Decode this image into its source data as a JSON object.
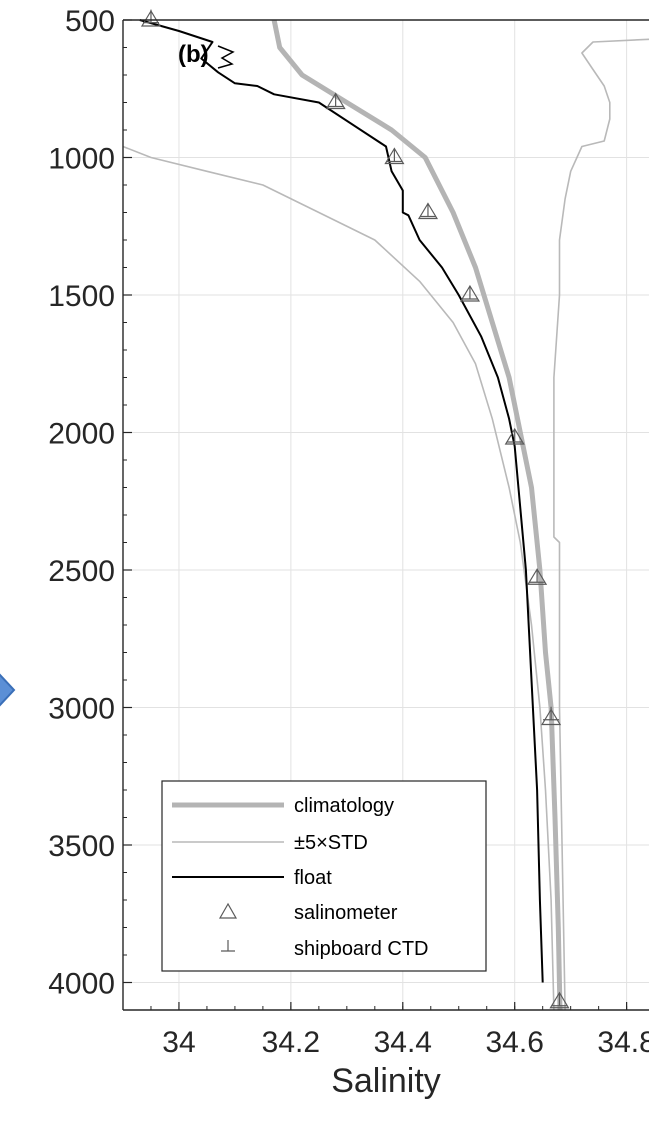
{
  "chart_data": {
    "type": "line",
    "panel_label": "(b)",
    "xlabel": "Salinity",
    "ylabel": "",
    "xlim": [
      33.9,
      34.84
    ],
    "ylim": [
      500,
      4100
    ],
    "y_reversed": true,
    "grid": true,
    "x_ticks": [
      34,
      34.2,
      34.4,
      34.6,
      34.8
    ],
    "x_tick_labels": [
      "34",
      "34.2",
      "34.4",
      "34.6",
      "34.8"
    ],
    "y_ticks": [
      500,
      1000,
      1500,
      2000,
      2500,
      3000,
      3500,
      4000
    ],
    "y_tick_labels": [
      "500",
      "1000",
      "1500",
      "2000",
      "2500",
      "3000",
      "3500",
      "4000"
    ],
    "legend": {
      "placement": "bottom-left",
      "entries": [
        {
          "key": "climatology",
          "label": "climatology"
        },
        {
          "key": "std",
          "label": "±5×STD"
        },
        {
          "key": "float",
          "label": "float"
        },
        {
          "key": "salinometer",
          "label": "salinometer"
        },
        {
          "key": "ctd",
          "label": "shipboard CTD"
        }
      ]
    },
    "colors": {
      "climatology": "#b4b4b4",
      "std": "#b9b9b9",
      "float": "#000000",
      "markers": "#5a5a5a",
      "grid": "#e2e2e2",
      "axis": "#262626"
    },
    "series": [
      {
        "key": "climatology",
        "name": "climatology",
        "x": [
          34.17,
          34.18,
          34.22,
          34.3,
          34.38,
          34.44,
          34.49,
          34.53,
          34.56,
          34.59,
          34.61,
          34.63,
          34.645,
          34.655,
          34.665,
          34.672,
          34.678,
          34.681
        ],
        "y": [
          500,
          600,
          700,
          800,
          900,
          1000,
          1200,
          1400,
          1600,
          1800,
          2000,
          2200,
          2500,
          2800,
          3000,
          3400,
          3800,
          4100
        ]
      },
      {
        "key": "std_lower",
        "name": "±5×STD",
        "x": [
          33.9,
          33.95,
          34.05,
          34.15,
          34.25,
          34.35,
          34.43,
          34.49,
          34.53,
          34.56,
          34.59,
          34.61,
          34.63,
          34.645,
          34.655,
          34.665,
          34.67
        ],
        "y": [
          960,
          1000,
          1050,
          1100,
          1200,
          1300,
          1450,
          1600,
          1750,
          1950,
          2200,
          2400,
          2700,
          3000,
          3300,
          3700,
          4100
        ]
      },
      {
        "key": "std_upper",
        "name": "±5×STD",
        "x": [
          34.84,
          34.74,
          34.72,
          34.74,
          34.76,
          34.77,
          34.77,
          34.76,
          34.72,
          34.7,
          34.69,
          34.68,
          34.68,
          34.67,
          34.67,
          34.67,
          34.67,
          34.68,
          34.68,
          34.69
        ],
        "y": [
          570,
          580,
          620,
          680,
          740,
          800,
          860,
          940,
          960,
          1050,
          1150,
          1300,
          1500,
          1800,
          2000,
          2200,
          2380,
          2400,
          3000,
          4100
        ]
      },
      {
        "key": "float",
        "name": "float",
        "x": [
          33.93,
          34.0,
          34.06,
          34.04,
          34.07,
          34.1,
          34.14,
          34.17,
          34.25,
          34.37,
          34.38,
          34.4,
          34.4,
          34.41,
          34.43,
          34.47,
          34.5,
          34.54,
          34.57,
          34.59,
          34.6,
          34.62,
          34.63,
          34.64,
          34.645,
          34.65
        ],
        "y": [
          500,
          540,
          580,
          640,
          690,
          730,
          740,
          770,
          800,
          960,
          1050,
          1120,
          1200,
          1210,
          1300,
          1400,
          1500,
          1650,
          1800,
          1950,
          2050,
          2500,
          2900,
          3300,
          3700,
          4000
        ]
      }
    ],
    "salinometer": {
      "x": [
        33.95,
        34.28,
        34.385,
        34.445,
        34.52,
        34.6,
        34.64,
        34.665,
        34.68
      ],
      "y": [
        500,
        800,
        1000,
        1200,
        1500,
        2020,
        2530,
        3040,
        4070
      ]
    },
    "shipboard_ctd": {
      "x": [
        33.95,
        34.28,
        34.385,
        34.445,
        34.52,
        34.6,
        34.64,
        34.665,
        34.68
      ],
      "y": [
        495,
        800,
        1000,
        1200,
        1500,
        2020,
        2530,
        3030,
        4070
      ]
    }
  }
}
